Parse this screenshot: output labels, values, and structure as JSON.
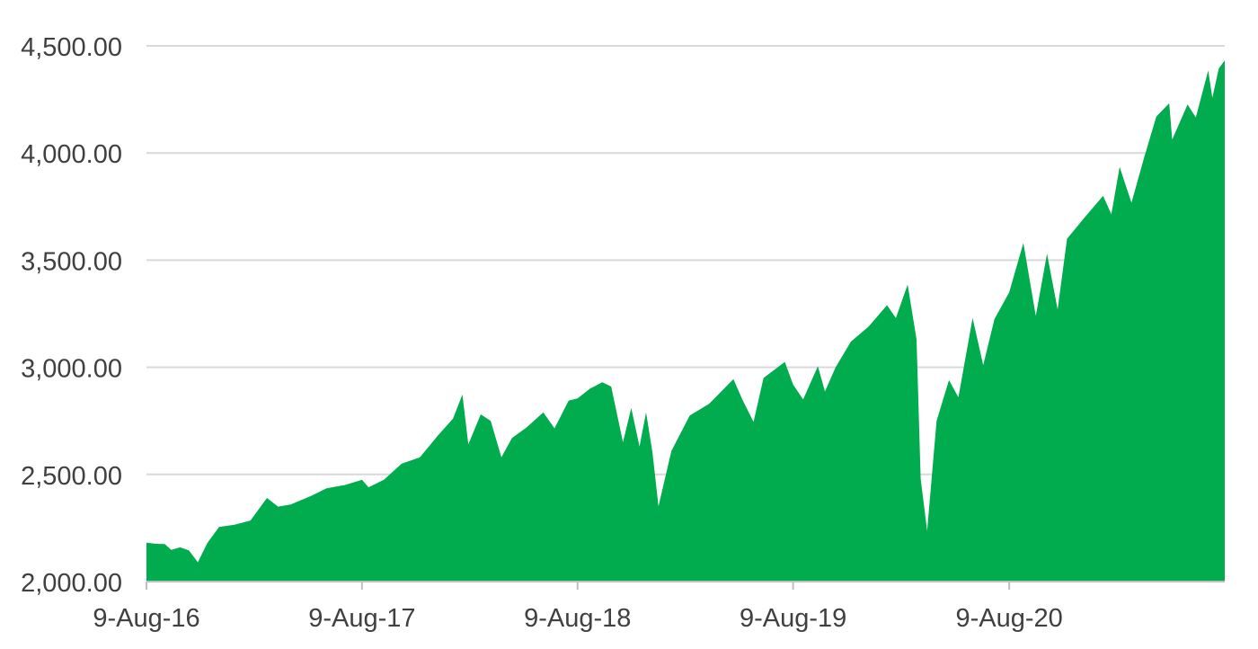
{
  "chart_data": {
    "type": "area",
    "title": "",
    "xlabel": "",
    "ylabel": "",
    "ylim": [
      2000,
      4500
    ],
    "xlim": [
      "2016-08-09",
      "2021-08-09"
    ],
    "grid": true,
    "colors": {
      "area": "#00ac4e",
      "grid": "#d9d9d9",
      "axis": "#bfbfbf",
      "text": "#404040"
    },
    "y_ticks": [
      {
        "value": 2000,
        "label": "2,000.00"
      },
      {
        "value": 2500,
        "label": "2,500.00"
      },
      {
        "value": 3000,
        "label": "3,000.00"
      },
      {
        "value": 3500,
        "label": "3,500.00"
      },
      {
        "value": 4000,
        "label": "4,000.00"
      },
      {
        "value": 4500,
        "label": "4,500.00"
      }
    ],
    "x_ticks": [
      {
        "value": "2016-08-09",
        "label": "9-Aug-16"
      },
      {
        "value": "2017-08-09",
        "label": "9-Aug-17"
      },
      {
        "value": "2018-08-09",
        "label": "9-Aug-18"
      },
      {
        "value": "2019-08-09",
        "label": "9-Aug-19"
      },
      {
        "value": "2020-08-09",
        "label": "9-Aug-20"
      }
    ],
    "series": [
      {
        "points": [
          [
            "2016-08-09",
            2182
          ],
          [
            "2016-08-25",
            2176
          ],
          [
            "2016-09-09",
            2175
          ],
          [
            "2016-09-20",
            2148
          ],
          [
            "2016-10-05",
            2160
          ],
          [
            "2016-10-20",
            2145
          ],
          [
            "2016-11-04",
            2090
          ],
          [
            "2016-11-20",
            2180
          ],
          [
            "2016-12-10",
            2255
          ],
          [
            "2017-01-05",
            2265
          ],
          [
            "2017-02-01",
            2285
          ],
          [
            "2017-03-01",
            2390
          ],
          [
            "2017-03-20",
            2350
          ],
          [
            "2017-04-10",
            2360
          ],
          [
            "2017-05-15",
            2400
          ],
          [
            "2017-06-10",
            2435
          ],
          [
            "2017-07-10",
            2450
          ],
          [
            "2017-08-09",
            2475
          ],
          [
            "2017-08-20",
            2440
          ],
          [
            "2017-09-15",
            2475
          ],
          [
            "2017-10-15",
            2550
          ],
          [
            "2017-11-15",
            2580
          ],
          [
            "2017-12-15",
            2680
          ],
          [
            "2018-01-10",
            2760
          ],
          [
            "2018-01-26",
            2873
          ],
          [
            "2018-02-05",
            2640
          ],
          [
            "2018-02-26",
            2780
          ],
          [
            "2018-03-15",
            2750
          ],
          [
            "2018-04-02",
            2580
          ],
          [
            "2018-04-20",
            2670
          ],
          [
            "2018-05-15",
            2720
          ],
          [
            "2018-06-12",
            2790
          ],
          [
            "2018-07-01",
            2715
          ],
          [
            "2018-07-25",
            2845
          ],
          [
            "2018-08-09",
            2855
          ],
          [
            "2018-08-30",
            2900
          ],
          [
            "2018-09-20",
            2930
          ],
          [
            "2018-10-05",
            2910
          ],
          [
            "2018-10-25",
            2650
          ],
          [
            "2018-11-08",
            2810
          ],
          [
            "2018-11-22",
            2630
          ],
          [
            "2018-12-03",
            2790
          ],
          [
            "2018-12-14",
            2600
          ],
          [
            "2018-12-24",
            2351
          ],
          [
            "2019-01-15",
            2610
          ],
          [
            "2019-02-15",
            2775
          ],
          [
            "2019-03-20",
            2830
          ],
          [
            "2019-04-30",
            2945
          ],
          [
            "2019-05-15",
            2850
          ],
          [
            "2019-06-03",
            2745
          ],
          [
            "2019-06-20",
            2950
          ],
          [
            "2019-07-26",
            3025
          ],
          [
            "2019-08-09",
            2920
          ],
          [
            "2019-08-26",
            2850
          ],
          [
            "2019-09-20",
            3005
          ],
          [
            "2019-10-02",
            2887
          ],
          [
            "2019-10-20",
            3000
          ],
          [
            "2019-11-15",
            3120
          ],
          [
            "2019-12-15",
            3190
          ],
          [
            "2020-01-15",
            3290
          ],
          [
            "2020-01-30",
            3230
          ],
          [
            "2020-02-19",
            3386
          ],
          [
            "2020-03-05",
            3130
          ],
          [
            "2020-03-12",
            2480
          ],
          [
            "2020-03-23",
            2237
          ],
          [
            "2020-04-08",
            2750
          ],
          [
            "2020-04-29",
            2940
          ],
          [
            "2020-05-15",
            2860
          ],
          [
            "2020-06-08",
            3230
          ],
          [
            "2020-06-26",
            3010
          ],
          [
            "2020-07-15",
            3225
          ],
          [
            "2020-08-09",
            3350
          ],
          [
            "2020-09-02",
            3580
          ],
          [
            "2020-09-23",
            3240
          ],
          [
            "2020-10-12",
            3530
          ],
          [
            "2020-10-30",
            3270
          ],
          [
            "2020-11-15",
            3600
          ],
          [
            "2020-12-15",
            3700
          ],
          [
            "2021-01-15",
            3800
          ],
          [
            "2021-01-29",
            3714
          ],
          [
            "2021-02-12",
            3935
          ],
          [
            "2021-03-04",
            3768
          ],
          [
            "2021-03-25",
            3975
          ],
          [
            "2021-04-15",
            4170
          ],
          [
            "2021-05-07",
            4232
          ],
          [
            "2021-05-12",
            4063
          ],
          [
            "2021-06-07",
            4226
          ],
          [
            "2021-06-21",
            4166
          ],
          [
            "2021-07-12",
            4385
          ],
          [
            "2021-07-19",
            4258
          ],
          [
            "2021-07-30",
            4395
          ],
          [
            "2021-08-09",
            4432
          ]
        ]
      }
    ]
  }
}
